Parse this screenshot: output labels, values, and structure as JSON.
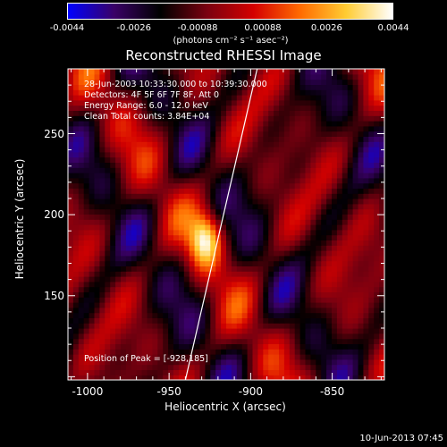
{
  "colorbar": {
    "tick_labels": [
      "-0.0044",
      "-0.0026",
      "-0.00088",
      "0.00088",
      "0.0026",
      "0.0044"
    ],
    "tick_values": [
      -0.0044,
      -0.0026,
      -0.00088,
      0.00088,
      0.0026,
      0.0044
    ],
    "unit_label": "(photons cm⁻² s⁻¹ asec⁻²)",
    "colors": [
      "#0000ff",
      "#3a0066",
      "#000000",
      "#7a0010",
      "#d40000",
      "#ff6a00",
      "#ffcc33",
      "#ffffff"
    ]
  },
  "title": "Reconstructed RHESSI Image",
  "info_lines": [
    "28-Jun-2003 10:33:30.000 to 10:39:30.000",
    "Detectors: 4F 5F 6F 7F 8F, Att 0",
    "Energy Range: 6.0 - 12.0 keV",
    "Clean     Total counts: 3.84E+04"
  ],
  "peak_label": "Position of Peak = [-928,185]",
  "footer_date": "10-Jun-2013 07:45",
  "chart_data": {
    "type": "heatmap",
    "title": "Reconstructed RHESSI Image",
    "xlabel": "Heliocentric X (arcsec)",
    "ylabel": "Heliocentric Y (arcsec)",
    "xlim": [
      -1012,
      -818
    ],
    "ylim": [
      98,
      290
    ],
    "x_ticks": [
      -1000,
      -950,
      -900,
      -850
    ],
    "x_tick_labels": [
      "-1000",
      "-950",
      "-900",
      "-850"
    ],
    "y_ticks": [
      150,
      200,
      250
    ],
    "y_tick_labels": [
      "150",
      "200",
      "250"
    ],
    "color_range": [
      -0.0044,
      0.0044
    ],
    "peak": {
      "x": -928,
      "y": 185
    },
    "limb_line": [
      {
        "x": -940,
        "y": 98
      },
      {
        "x": -896,
        "y": 290
      }
    ]
  }
}
